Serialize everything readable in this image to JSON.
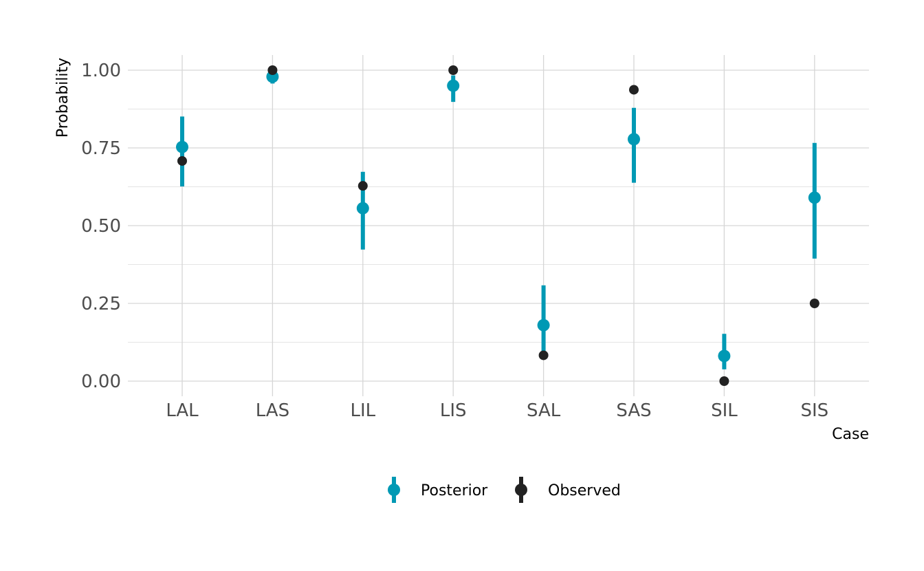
{
  "chart_data": {
    "type": "scatter",
    "categories": [
      "LAL",
      "LAS",
      "LIL",
      "LIS",
      "SAL",
      "SAS",
      "SIL",
      "SIS"
    ],
    "xlabel": "Case",
    "ylabel": "Probability",
    "ylim": [
      0,
      1.05
    ],
    "yticks": [
      0,
      0.25,
      0.5,
      0.75,
      1.0
    ],
    "ytick_labels": [
      "0.00",
      "0.25",
      "0.50",
      "0.75",
      "1.00"
    ],
    "grid": true,
    "legend_position": "bottom",
    "series": [
      {
        "name": "Posterior",
        "color": "#0099b4",
        "values": [
          0.753,
          0.979,
          0.556,
          0.95,
          0.18,
          0.778,
          0.081,
          0.59
        ],
        "lower": [
          0.626,
          0.957,
          0.423,
          0.898,
          0.088,
          0.638,
          0.038,
          0.394
        ],
        "upper": [
          0.851,
          0.993,
          0.673,
          0.983,
          0.308,
          0.879,
          0.152,
          0.766
        ]
      },
      {
        "name": "Observed",
        "color": "#222222",
        "values": [
          0.708,
          1.0,
          0.628,
          1.0,
          0.083,
          0.937,
          0.0,
          0.25
        ]
      }
    ]
  }
}
